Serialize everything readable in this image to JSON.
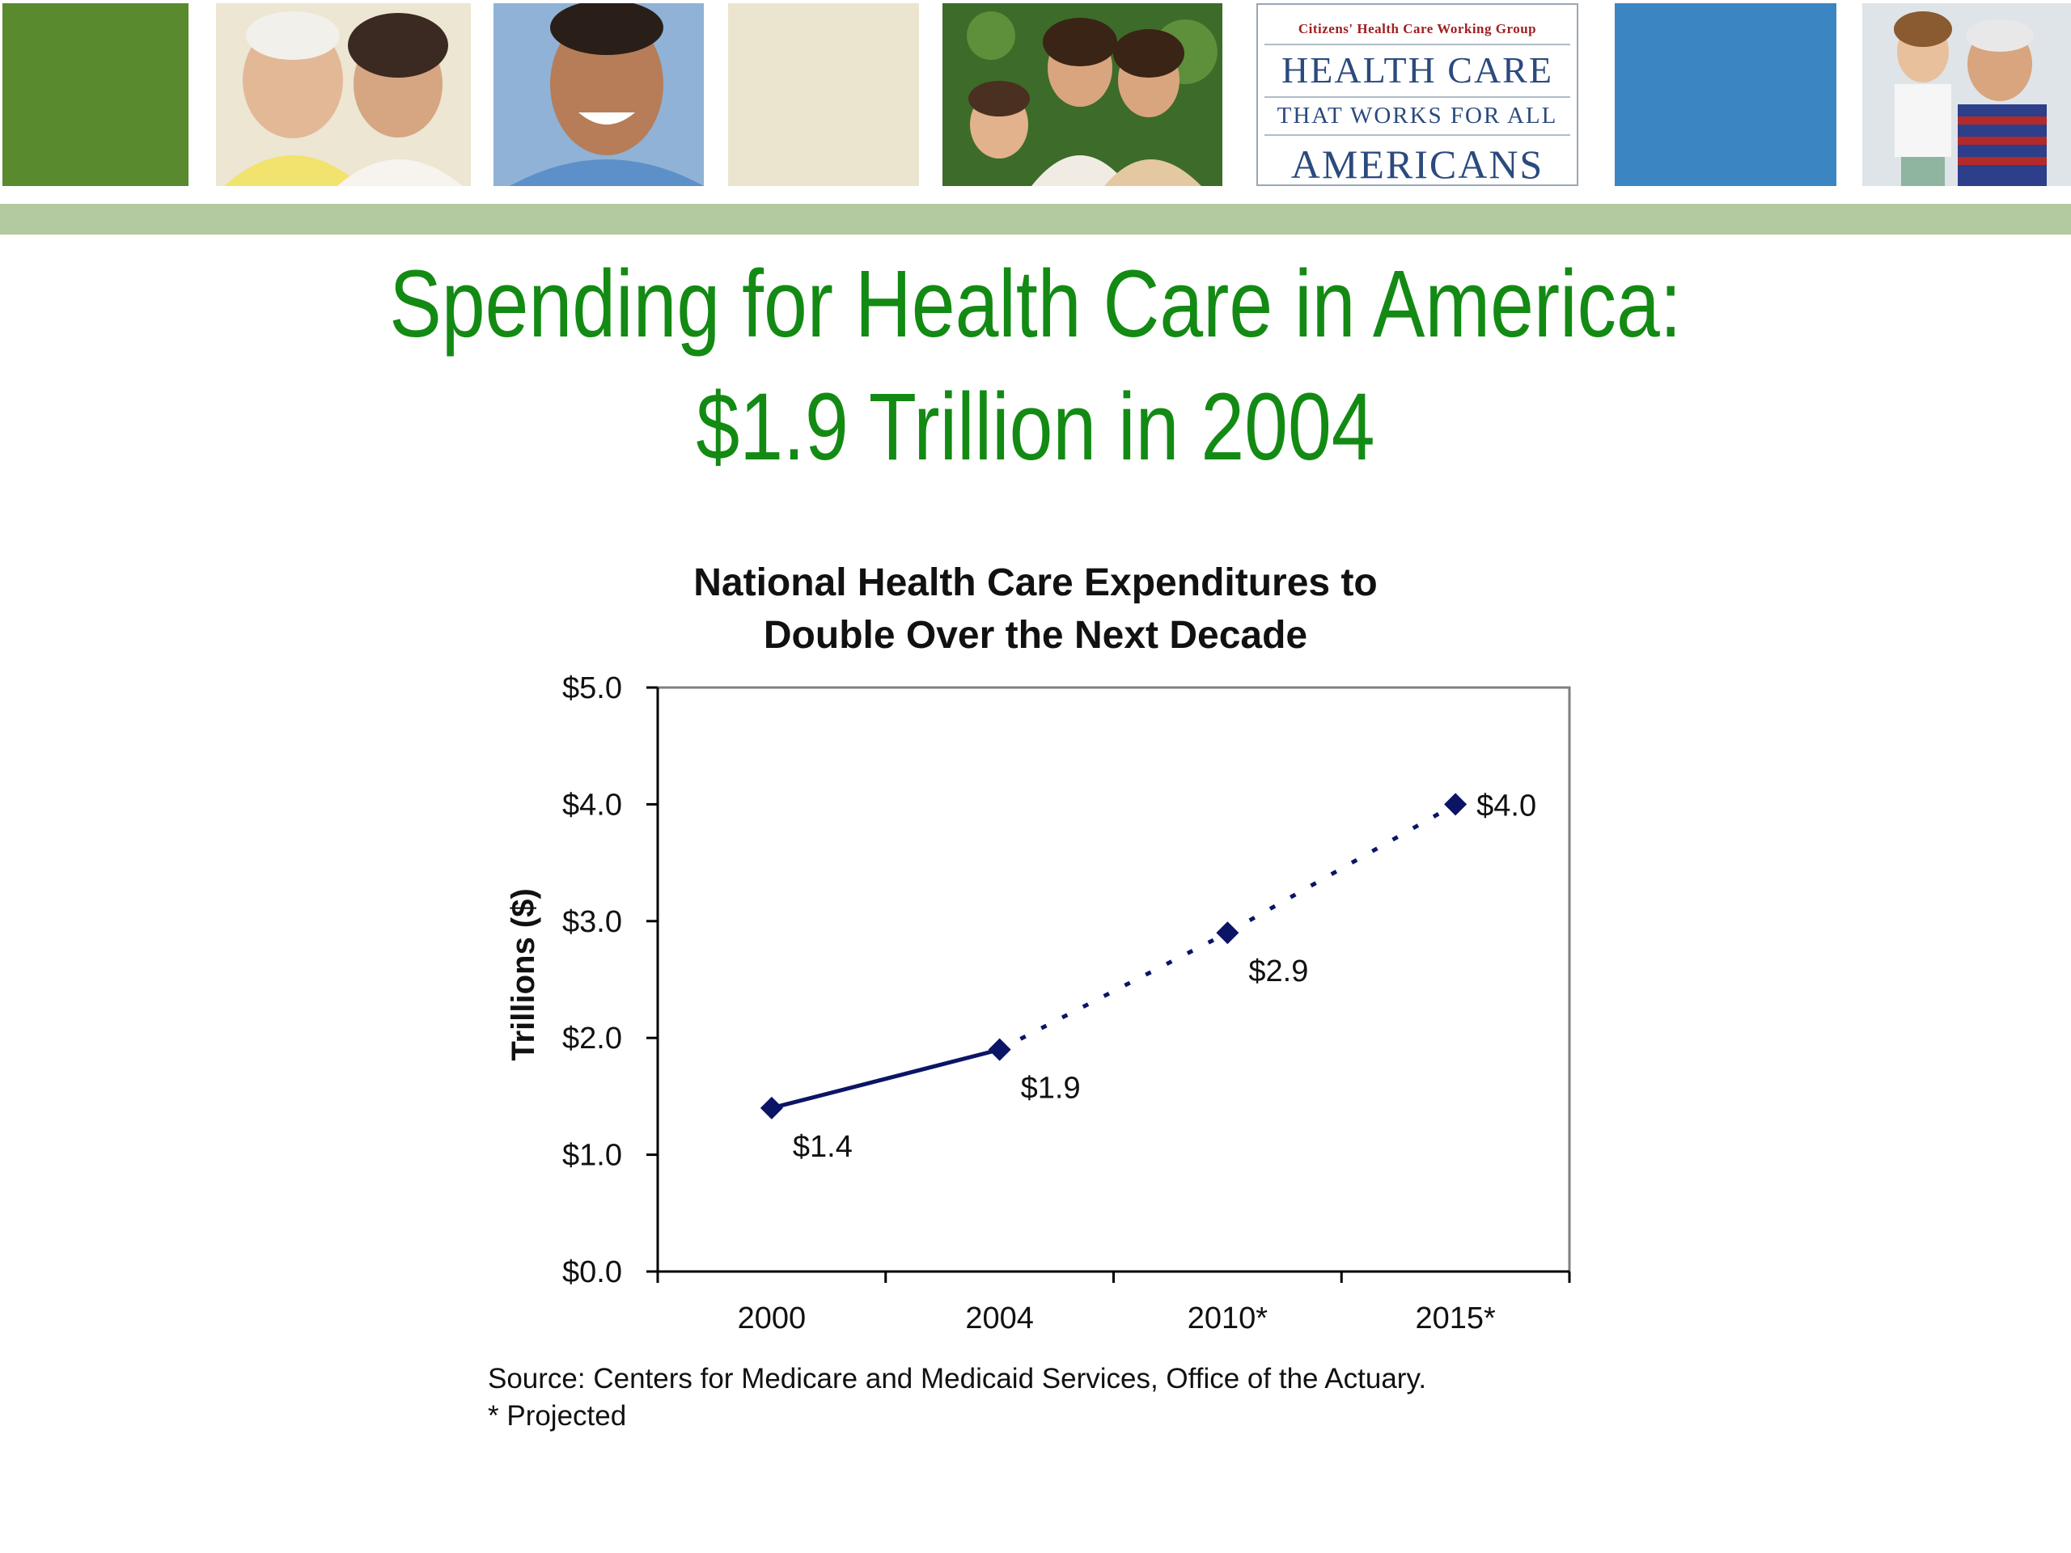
{
  "banner": {
    "logo": {
      "org": "Citizens' Health Care Working Group",
      "line1": "HEALTH CARE",
      "line2": "THAT WORKS FOR ALL",
      "line3": "AMERICANS"
    },
    "colors": {
      "green_block": "#5a8a2e",
      "cream_block": "#ebe5cf",
      "blue_block": "#3b86c2",
      "stripe": "#b3c9a0"
    }
  },
  "slide": {
    "title_line1": "Spending for Health Care in America:",
    "title_line2": "$1.9 Trillion in 2004",
    "title_color": "#138a13"
  },
  "chart_data": {
    "type": "line",
    "title_line1": "National Health Care Expenditures to",
    "title_line2": "Double Over the Next Decade",
    "ylabel": "Trillions ($)",
    "xlabel": "",
    "categories": [
      "2000",
      "2004",
      "2010*",
      "2015*"
    ],
    "values": [
      1.4,
      1.9,
      2.9,
      4.0
    ],
    "data_labels": [
      "$1.4",
      "$1.9",
      "$2.9",
      "$4.0"
    ],
    "actual_segment": [
      "2000",
      "2004"
    ],
    "projected_segment": [
      "2004",
      "2010*",
      "2015*"
    ],
    "ylim": [
      0,
      5
    ],
    "y_ticks": [
      0,
      1,
      2,
      3,
      4,
      5
    ],
    "y_tick_labels": [
      "$0.0",
      "$1.0",
      "$2.0",
      "$3.0",
      "$4.0",
      "$5.0"
    ],
    "grid": false,
    "series_color": "#0c1466"
  },
  "footer": {
    "source": "Source: Centers for Medicare and Medicaid Services, Office of the Actuary.",
    "note": "* Projected"
  }
}
